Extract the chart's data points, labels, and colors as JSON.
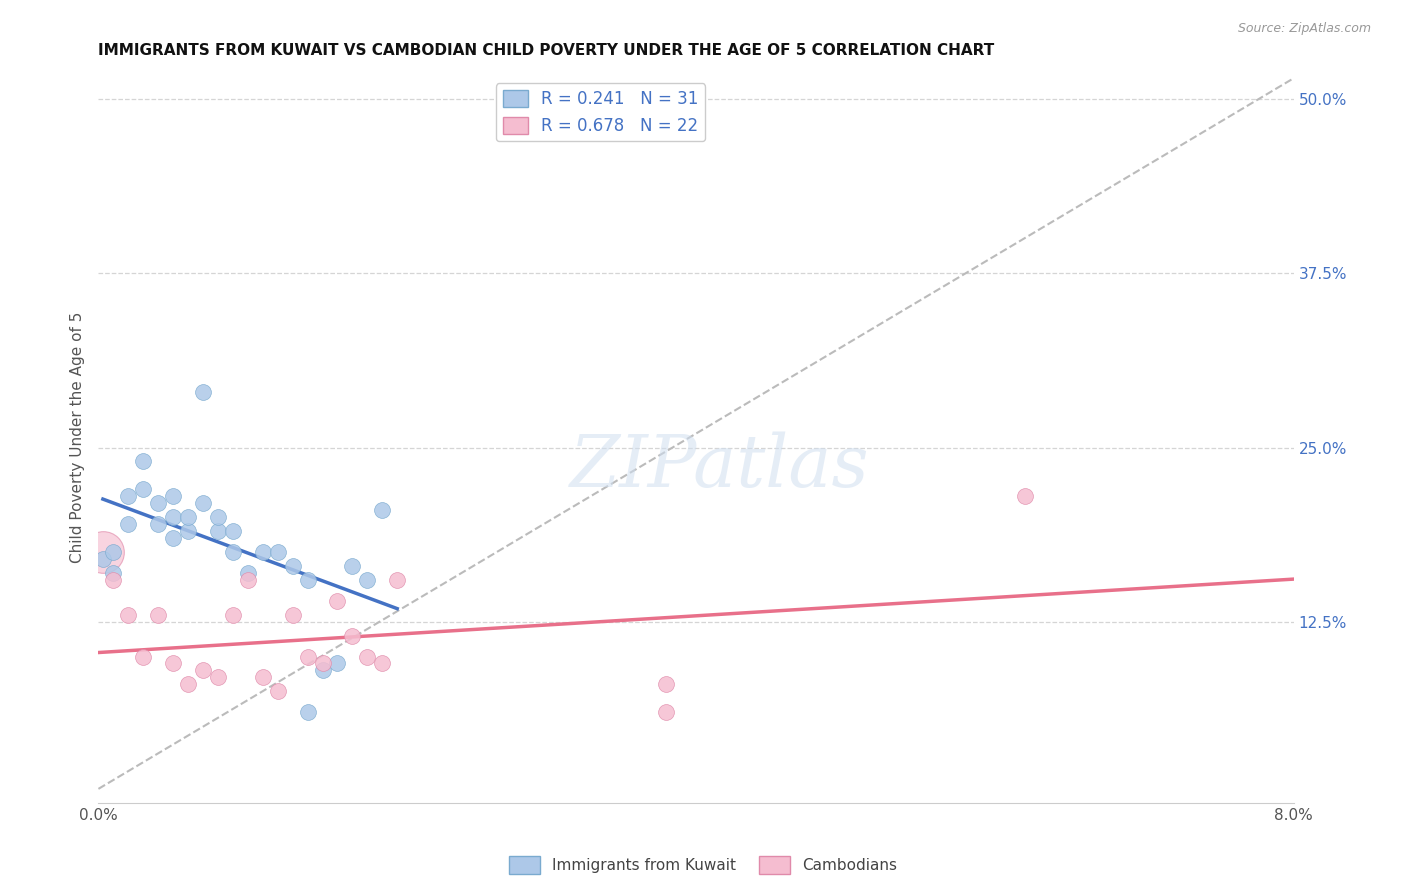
{
  "title": "IMMIGRANTS FROM KUWAIT VS CAMBODIAN CHILD POVERTY UNDER THE AGE OF 5 CORRELATION CHART",
  "source": "Source: ZipAtlas.com",
  "ylabel_label": "Child Poverty Under the Age of 5",
  "xlim": [
    0.0,
    0.08
  ],
  "ylim": [
    -0.005,
    0.52
  ],
  "xticks": [
    0.0,
    0.01,
    0.02,
    0.03,
    0.04,
    0.05,
    0.06,
    0.07,
    0.08
  ],
  "xticklabels": [
    "0.0%",
    "",
    "",
    "",
    "",
    "",
    "",
    "",
    "8.0%"
  ],
  "ytick_positions": [
    0.125,
    0.25,
    0.375,
    0.5
  ],
  "ytick_labels": [
    "12.5%",
    "25.0%",
    "37.5%",
    "50.0%"
  ],
  "kuwait_color": "#adc8e8",
  "cambodian_color": "#f5bdd0",
  "kuwait_edge_color": "#7aaacf",
  "cambodian_edge_color": "#e08aaa",
  "kuwait_line_color": "#4472c4",
  "cambodian_line_color": "#e8708a",
  "dashed_line_color": "#bbbbbb",
  "R_kuwait": 0.241,
  "N_kuwait": 31,
  "R_cambodian": 0.678,
  "N_cambodian": 22,
  "kuwait_x": [
    0.0003,
    0.001,
    0.001,
    0.002,
    0.002,
    0.003,
    0.003,
    0.004,
    0.004,
    0.005,
    0.005,
    0.005,
    0.006,
    0.006,
    0.007,
    0.007,
    0.008,
    0.008,
    0.009,
    0.009,
    0.01,
    0.011,
    0.012,
    0.013,
    0.014,
    0.014,
    0.015,
    0.016,
    0.017,
    0.018,
    0.019
  ],
  "kuwait_y": [
    0.17,
    0.16,
    0.175,
    0.195,
    0.215,
    0.22,
    0.24,
    0.195,
    0.21,
    0.185,
    0.2,
    0.215,
    0.19,
    0.2,
    0.21,
    0.29,
    0.19,
    0.2,
    0.175,
    0.19,
    0.16,
    0.175,
    0.175,
    0.165,
    0.155,
    0.06,
    0.09,
    0.095,
    0.165,
    0.155,
    0.205
  ],
  "cambodian_x": [
    0.001,
    0.002,
    0.003,
    0.004,
    0.005,
    0.006,
    0.007,
    0.008,
    0.009,
    0.01,
    0.011,
    0.012,
    0.013,
    0.014,
    0.015,
    0.016,
    0.017,
    0.018,
    0.019,
    0.02,
    0.038,
    0.038
  ],
  "cambodian_y": [
    0.155,
    0.13,
    0.1,
    0.13,
    0.095,
    0.08,
    0.09,
    0.085,
    0.13,
    0.155,
    0.085,
    0.075,
    0.13,
    0.1,
    0.095,
    0.14,
    0.115,
    0.1,
    0.095,
    0.155,
    0.08,
    0.06
  ],
  "cambodian_outlier_x": [
    0.062
  ],
  "cambodian_outlier_y": [
    0.215
  ],
  "cambodian_big_x": [
    0.0003
  ],
  "cambodian_big_y": [
    0.175
  ],
  "watermark": "ZIPatlas",
  "background_color": "#ffffff",
  "kuwait_line_x": [
    0.0003,
    0.02
  ],
  "cambodian_line_x": [
    0.0,
    0.08
  ],
  "dashed_line_x": [
    0.0,
    0.08
  ],
  "dashed_line_y": [
    0.005,
    0.515
  ]
}
